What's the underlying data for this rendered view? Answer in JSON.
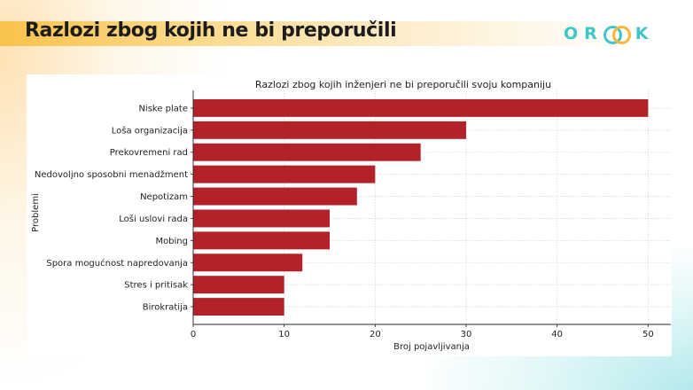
{
  "slide": {
    "title": "Razlozi zbog kojih ne bi preporučili",
    "logo_letters": [
      "O",
      "R",
      "K"
    ]
  },
  "colors": {
    "bar": "#b22228",
    "title_band": "#f9c24a",
    "logo_teal": "#3ec6c9",
    "logo_orange": "#f6b73c"
  },
  "chart_data": {
    "type": "bar",
    "orientation": "horizontal",
    "title": "Razlozi zbog kojih inženjeri ne bi preporučili svoju kompaniju",
    "xlabel": "Broj pojavljivanja",
    "ylabel": "Problemi",
    "xlim": [
      0,
      52.5
    ],
    "xticks": [
      0,
      10,
      20,
      30,
      40,
      50
    ],
    "grid": true,
    "categories": [
      "Niske plate",
      "Loša organizacija",
      "Prekovremeni rad",
      "Nedovoljno sposobni menadžment",
      "Nepotizam",
      "Loši uslovi rada",
      "Mobing",
      "Spora mogućnost napredovanja",
      "Stres i pritisak",
      "Birokratija"
    ],
    "values": [
      50,
      30,
      25,
      20,
      18,
      15,
      15,
      12,
      10,
      10
    ]
  }
}
